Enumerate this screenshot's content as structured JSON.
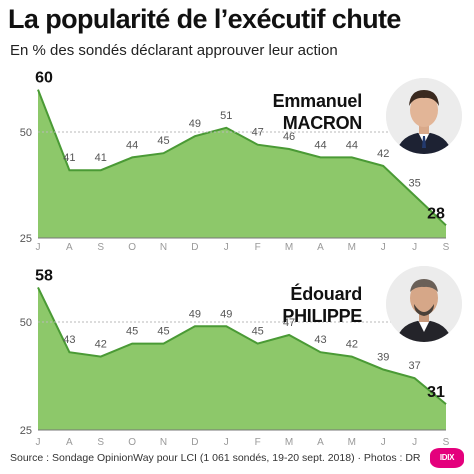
{
  "title": "La popularité de l’exécutif chute",
  "subtitle": "En % des sondés déclarant approuver leur action",
  "source": "Source : Sondage OpinionWay pour LCI  (1 061 sondés, 19-20 sept. 2018)  · Photos : DR",
  "logo_text": "IDIX",
  "colors": {
    "fill": "#8dc86a",
    "line": "#4a9a35",
    "grid": "#b9b9b9"
  },
  "persons": [
    {
      "first": "Emmanuel",
      "last": "MACRON"
    },
    {
      "first": "Édouard",
      "last": "PHILIPPE"
    }
  ],
  "chart_data": [
    {
      "type": "area",
      "x": [
        "J",
        "A",
        "S",
        "O",
        "N",
        "D",
        "J",
        "F",
        "M",
        "A",
        "M",
        "J",
        "J",
        "S"
      ],
      "y_ticks": [
        25,
        50
      ],
      "ylim": [
        25,
        60
      ],
      "grid": true,
      "series": [
        {
          "name": "Emmanuel MACRON",
          "values": [
            60,
            41,
            41,
            44,
            45,
            49,
            51,
            47,
            46,
            44,
            44,
            42,
            35,
            28
          ]
        }
      ]
    },
    {
      "type": "area",
      "x": [
        "J",
        "A",
        "S",
        "O",
        "N",
        "D",
        "J",
        "F",
        "M",
        "A",
        "M",
        "J",
        "J",
        "S"
      ],
      "y_ticks": [
        25,
        50
      ],
      "ylim": [
        25,
        60
      ],
      "grid": true,
      "series": [
        {
          "name": "Édouard PHILIPPE",
          "values": [
            58,
            43,
            42,
            45,
            45,
            49,
            49,
            45,
            47,
            43,
            42,
            39,
            37,
            31
          ]
        }
      ]
    }
  ]
}
